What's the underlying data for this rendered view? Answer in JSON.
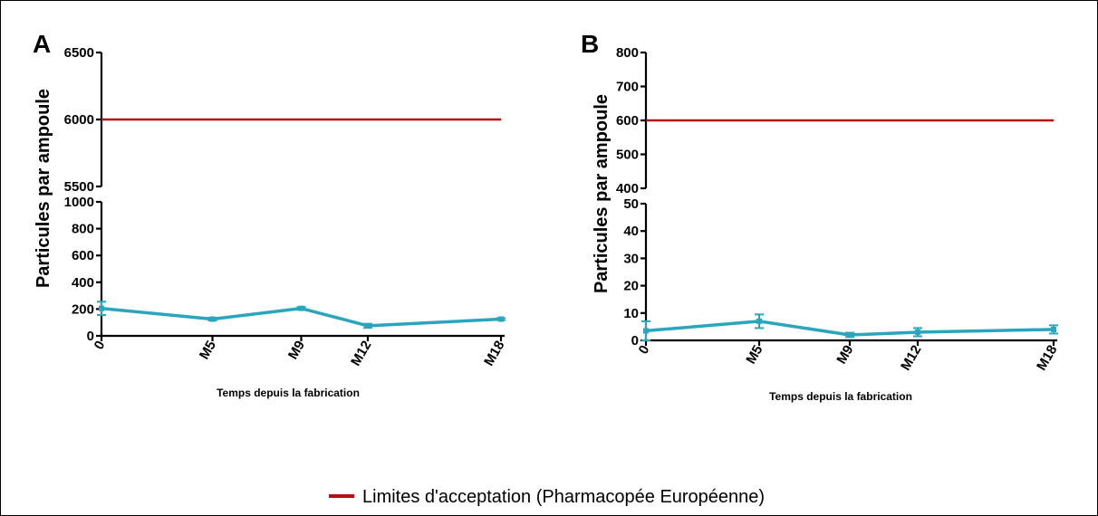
{
  "chart_data": [
    {
      "panel": "A",
      "type": "line",
      "ylabel": "Particules par ampoule",
      "xlabel": "Temps depuis la fabrication",
      "categories": [
        "0",
        "M5",
        "M9",
        "M12",
        "M18"
      ],
      "x_months": [
        0,
        5,
        9,
        12,
        18
      ],
      "broken_y_axis": true,
      "y_upper_segment": {
        "ylim": [
          5500,
          6500
        ],
        "ticks": [
          "5500",
          "6000",
          "6500"
        ]
      },
      "y_lower_segment": {
        "ylim": [
          0,
          1000
        ],
        "ticks": [
          "0",
          "200",
          "400",
          "600",
          "800",
          "1000"
        ]
      },
      "series": [
        {
          "values": [
            205,
            125,
            205,
            75,
            125
          ],
          "error": [
            50,
            10,
            10,
            15,
            8
          ],
          "color": "#2aa5bd"
        }
      ],
      "reference_line": {
        "value": 6000,
        "color": "#b50f14"
      }
    },
    {
      "panel": "B",
      "type": "line",
      "ylabel": "Particules par ampoule",
      "xlabel": "Temps depuis la fabrication",
      "categories": [
        "0",
        "M5",
        "M9",
        "M12",
        "M18"
      ],
      "x_months": [
        0,
        5,
        9,
        12,
        18
      ],
      "broken_y_axis": true,
      "y_upper_segment": {
        "ylim": [
          400,
          800
        ],
        "ticks": [
          "400",
          "500",
          "600",
          "700",
          "800"
        ]
      },
      "y_lower_segment": {
        "ylim": [
          0,
          50
        ],
        "ticks": [
          "0",
          "10",
          "20",
          "30",
          "40",
          "50"
        ]
      },
      "series": [
        {
          "values": [
            3.5,
            7,
            2,
            3,
            4
          ],
          "error": [
            3.5,
            2.5,
            0.8,
            1.5,
            1.5
          ],
          "color": "#2aa5bd"
        }
      ],
      "reference_line": {
        "value": 600,
        "color": "#b50f14"
      }
    }
  ],
  "legend": {
    "label": "Limites d'acceptation (Pharmacopée  Européenne)",
    "color": "#b50f14",
    "placement": "bottom-center"
  }
}
